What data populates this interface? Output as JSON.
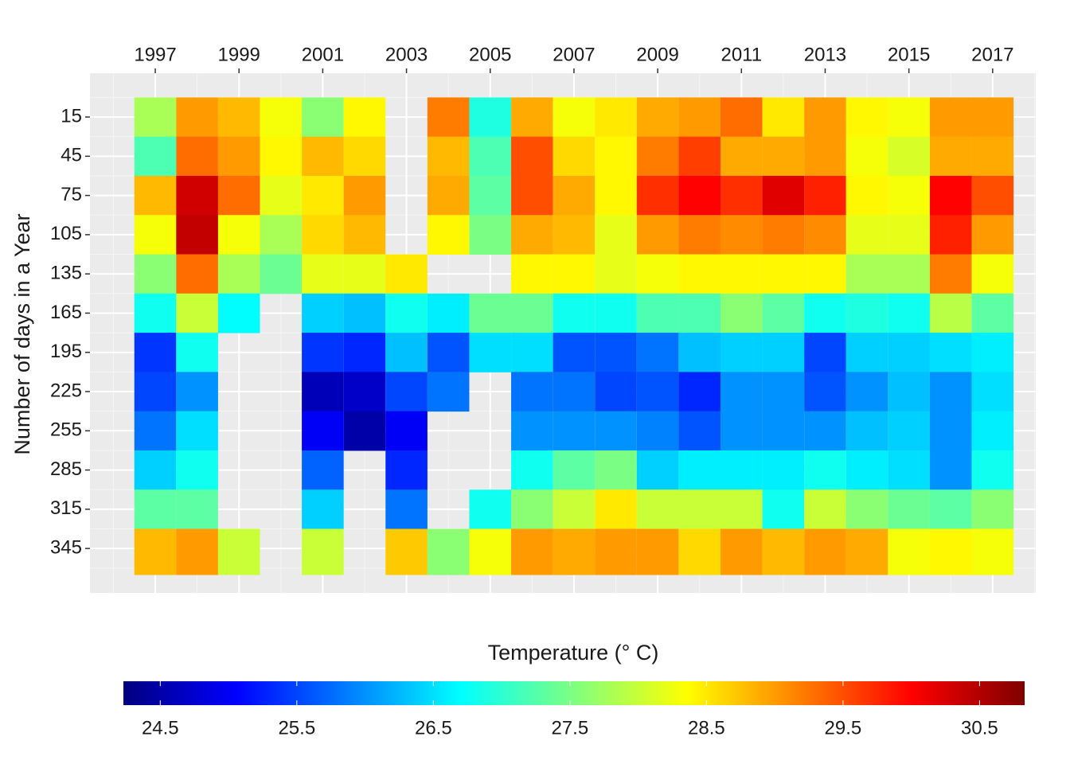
{
  "chart_data": {
    "type": "heatmap",
    "y_title": "Number of days in a Year",
    "legend_title": "Temperature (° C)",
    "x": [
      1997,
      1998,
      1999,
      2000,
      2001,
      2002,
      2003,
      2004,
      2005,
      2006,
      2007,
      2008,
      2009,
      2010,
      2011,
      2012,
      2013,
      2014,
      2015,
      2016,
      2017
    ],
    "y_bins": [
      0,
      30,
      60,
      90,
      120,
      150,
      180,
      210,
      240,
      270,
      300,
      330,
      365
    ],
    "values": [
      [
        27.8,
        27.2,
        28.8,
        28.3,
        27.6,
        26.8,
        25.4,
        25.5,
        25.8,
        26.4,
        27.3,
        28.8
      ],
      [
        29.0,
        29.3,
        30.3,
        30.4,
        29.3,
        28.0,
        26.8,
        26.0,
        26.5,
        26.8,
        27.3,
        29.0
      ],
      [
        28.8,
        29.0,
        29.3,
        28.3,
        27.8,
        26.7,
        null,
        null,
        null,
        null,
        null,
        28.0
      ],
      [
        28.3,
        28.4,
        28.2,
        27.8,
        27.4,
        null,
        null,
        null,
        null,
        null,
        null,
        null
      ],
      [
        27.6,
        28.8,
        28.5,
        28.6,
        28.2,
        26.4,
        25.4,
        24.6,
        25.0,
        25.7,
        26.4,
        28.0
      ],
      [
        28.4,
        28.6,
        29.0,
        28.8,
        28.2,
        26.3,
        25.3,
        24.7,
        24.5,
        null,
        null,
        null
      ],
      [
        null,
        null,
        null,
        null,
        28.5,
        26.8,
        26.3,
        25.5,
        25.0,
        25.3,
        25.8,
        28.7
      ],
      [
        29.2,
        28.8,
        28.9,
        28.4,
        null,
        26.6,
        25.6,
        25.8,
        null,
        null,
        null,
        27.6
      ],
      [
        26.9,
        27.2,
        27.3,
        27.5,
        null,
        27.4,
        26.5,
        null,
        null,
        null,
        26.8,
        28.3
      ],
      [
        28.9,
        29.5,
        29.5,
        28.9,
        28.4,
        27.4,
        26.5,
        25.8,
        26.0,
        26.8,
        27.6,
        29.0
      ],
      [
        28.3,
        28.6,
        28.9,
        28.8,
        28.4,
        26.8,
        25.6,
        25.8,
        26.0,
        27.3,
        28.0,
        28.9
      ],
      [
        28.5,
        28.4,
        28.4,
        28.2,
        28.2,
        26.8,
        25.6,
        25.5,
        26.0,
        27.5,
        28.5,
        29.0
      ],
      [
        28.9,
        29.2,
        29.7,
        29.0,
        28.3,
        27.2,
        25.8,
        25.6,
        25.9,
        26.4,
        28.0,
        29.0
      ],
      [
        29.0,
        29.6,
        30.0,
        29.2,
        28.4,
        27.2,
        26.3,
        25.3,
        25.6,
        26.6,
        28.0,
        28.6
      ],
      [
        29.3,
        28.9,
        29.7,
        29.1,
        28.4,
        27.6,
        26.4,
        26.0,
        26.0,
        26.6,
        28.0,
        29.0
      ],
      [
        28.5,
        28.9,
        30.2,
        29.2,
        28.4,
        27.3,
        26.4,
        26.0,
        26.0,
        26.6,
        26.8,
        28.8
      ],
      [
        29.0,
        29.0,
        29.8,
        29.1,
        28.4,
        26.8,
        25.5,
        25.6,
        26.0,
        26.8,
        28.0,
        29.0
      ],
      [
        28.4,
        28.3,
        28.4,
        28.2,
        27.8,
        26.9,
        26.4,
        26.0,
        26.3,
        26.6,
        27.6,
        28.9
      ],
      [
        28.3,
        28.1,
        28.3,
        28.2,
        27.8,
        26.8,
        26.4,
        26.3,
        26.4,
        26.5,
        27.4,
        28.3
      ],
      [
        29.0,
        28.9,
        30.0,
        29.8,
        29.2,
        27.9,
        26.5,
        26.0,
        26.0,
        26.0,
        27.3,
        28.4
      ],
      [
        29.0,
        28.9,
        29.5,
        29.0,
        28.3,
        27.3,
        26.6,
        26.5,
        26.6,
        26.8,
        27.6,
        28.3
      ]
    ],
    "xlim": [
      1995.44,
      2018.03
    ],
    "xticks": [
      1997,
      1999,
      2001,
      2003,
      2005,
      2007,
      2009,
      2011,
      2013,
      2015,
      2017
    ],
    "ylim": [
      -18.5,
      379
    ],
    "yticks": [
      15,
      45,
      75,
      105,
      135,
      165,
      195,
      225,
      255,
      285,
      315,
      345
    ],
    "y_reversed": true,
    "x_axis_position": "top",
    "grid": true,
    "zlim": [
      24.23,
      30.83
    ],
    "zticks": [
      24.5,
      25.5,
      26.5,
      27.5,
      28.5,
      29.5,
      30.5
    ],
    "colors": [
      "#00007F",
      "#0000FF",
      "#007FFF",
      "#00FFFF",
      "#7FFF7F",
      "#FFFF00",
      "#FF7F00",
      "#FF0000",
      "#7F0000"
    ]
  }
}
